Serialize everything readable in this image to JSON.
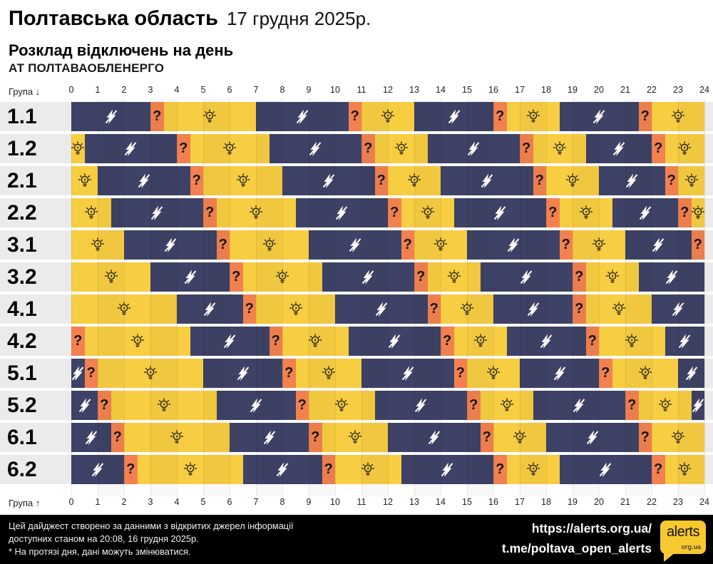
{
  "header": {
    "region": "Полтавська область",
    "date": "17 грудня 2025р.",
    "subtitle": "Розклад відключень на день",
    "company": "АТ ПОЛТАВАОБЛЕНЕРГО"
  },
  "axis": {
    "group_label_down": "Група ↓",
    "group_label_up": "Група ↑",
    "ticks": [
      0,
      1,
      2,
      3,
      4,
      5,
      6,
      7,
      8,
      9,
      10,
      11,
      12,
      13,
      14,
      15,
      16,
      17,
      18,
      19,
      20,
      21,
      22,
      23,
      24
    ]
  },
  "colors": {
    "on": "#f7cd41",
    "off": "#3e4266",
    "maybe": "#f2814f",
    "row_bg": "#ebebeb",
    "footer_bg": "#000000",
    "logo_yellow": "#f7c92f"
  },
  "icons": {
    "on": "bulb-icon",
    "off": "no-power-icon",
    "maybe": "question-mark",
    "maybe_char": "?"
  },
  "chart_data": {
    "type": "gantt",
    "title": "Розклад відключень на день",
    "x_unit": "hours",
    "x_range": [
      0,
      24
    ],
    "states": [
      "on",
      "off",
      "maybe"
    ],
    "groups": [
      {
        "name": "1.1",
        "segments": [
          [
            "off",
            0,
            3
          ],
          [
            "maybe",
            3,
            3.5
          ],
          [
            "on",
            3.5,
            7
          ],
          [
            "off",
            7,
            10.5
          ],
          [
            "maybe",
            10.5,
            11
          ],
          [
            "on",
            11,
            13
          ],
          [
            "off",
            13,
            16
          ],
          [
            "maybe",
            16,
            16.5
          ],
          [
            "on",
            16.5,
            18.5
          ],
          [
            "off",
            18.5,
            21.5
          ],
          [
            "maybe",
            21.5,
            22
          ],
          [
            "on",
            22,
            24
          ]
        ]
      },
      {
        "name": "1.2",
        "segments": [
          [
            "on",
            0,
            0.5
          ],
          [
            "off",
            0.5,
            4
          ],
          [
            "maybe",
            4,
            4.5
          ],
          [
            "on",
            4.5,
            7.5
          ],
          [
            "off",
            7.5,
            11
          ],
          [
            "maybe",
            11,
            11.5
          ],
          [
            "on",
            11.5,
            13.5
          ],
          [
            "off",
            13.5,
            17
          ],
          [
            "maybe",
            17,
            17.5
          ],
          [
            "on",
            17.5,
            19.5
          ],
          [
            "off",
            19.5,
            22
          ],
          [
            "maybe",
            22,
            22.5
          ],
          [
            "on",
            22.5,
            24
          ]
        ]
      },
      {
        "name": "2.1",
        "segments": [
          [
            "on",
            0,
            1
          ],
          [
            "off",
            1,
            4.5
          ],
          [
            "maybe",
            4.5,
            5
          ],
          [
            "on",
            5,
            8
          ],
          [
            "off",
            8,
            11.5
          ],
          [
            "maybe",
            11.5,
            12
          ],
          [
            "on",
            12,
            14
          ],
          [
            "off",
            14,
            17.5
          ],
          [
            "maybe",
            17.5,
            18
          ],
          [
            "on",
            18,
            20
          ],
          [
            "off",
            20,
            22.5
          ],
          [
            "maybe",
            22.5,
            23
          ],
          [
            "on",
            23,
            24
          ]
        ]
      },
      {
        "name": "2.2",
        "segments": [
          [
            "on",
            0,
            1.5
          ],
          [
            "off",
            1.5,
            5
          ],
          [
            "maybe",
            5,
            5.5
          ],
          [
            "on",
            5.5,
            8.5
          ],
          [
            "off",
            8.5,
            12
          ],
          [
            "maybe",
            12,
            12.5
          ],
          [
            "on",
            12.5,
            14.5
          ],
          [
            "off",
            14.5,
            18
          ],
          [
            "maybe",
            18,
            18.5
          ],
          [
            "on",
            18.5,
            20.5
          ],
          [
            "off",
            20.5,
            23
          ],
          [
            "maybe",
            23,
            23.5
          ],
          [
            "on",
            23.5,
            24
          ]
        ]
      },
      {
        "name": "3.1",
        "segments": [
          [
            "on",
            0,
            2
          ],
          [
            "off",
            2,
            5.5
          ],
          [
            "maybe",
            5.5,
            6
          ],
          [
            "on",
            6,
            9
          ],
          [
            "off",
            9,
            12.5
          ],
          [
            "maybe",
            12.5,
            13
          ],
          [
            "on",
            13,
            15
          ],
          [
            "off",
            15,
            18.5
          ],
          [
            "maybe",
            18.5,
            19
          ],
          [
            "on",
            19,
            21
          ],
          [
            "off",
            21,
            23.5
          ],
          [
            "maybe",
            23.5,
            24
          ]
        ]
      },
      {
        "name": "3.2",
        "segments": [
          [
            "on",
            0,
            3
          ],
          [
            "off",
            3,
            6
          ],
          [
            "maybe",
            6,
            6.5
          ],
          [
            "on",
            6.5,
            9.5
          ],
          [
            "off",
            9.5,
            13
          ],
          [
            "maybe",
            13,
            13.5
          ],
          [
            "on",
            13.5,
            15.5
          ],
          [
            "off",
            15.5,
            19
          ],
          [
            "maybe",
            19,
            19.5
          ],
          [
            "on",
            19.5,
            21.5
          ],
          [
            "off",
            21.5,
            24
          ]
        ]
      },
      {
        "name": "4.1",
        "segments": [
          [
            "on",
            0,
            4
          ],
          [
            "off",
            4,
            6.5
          ],
          [
            "maybe",
            6.5,
            7
          ],
          [
            "on",
            7,
            10
          ],
          [
            "off",
            10,
            13.5
          ],
          [
            "maybe",
            13.5,
            14
          ],
          [
            "on",
            14,
            16
          ],
          [
            "off",
            16,
            19
          ],
          [
            "maybe",
            19,
            19.5
          ],
          [
            "on",
            19.5,
            22
          ],
          [
            "off",
            22,
            24
          ]
        ]
      },
      {
        "name": "4.2",
        "segments": [
          [
            "maybe",
            0,
            0.5
          ],
          [
            "on",
            0.5,
            4.5
          ],
          [
            "off",
            4.5,
            7.5
          ],
          [
            "maybe",
            7.5,
            8
          ],
          [
            "on",
            8,
            10.5
          ],
          [
            "off",
            10.5,
            14
          ],
          [
            "maybe",
            14,
            14.5
          ],
          [
            "on",
            14.5,
            16.5
          ],
          [
            "off",
            16.5,
            19.5
          ],
          [
            "maybe",
            19.5,
            20
          ],
          [
            "on",
            20,
            22.5
          ],
          [
            "off",
            22.5,
            24
          ]
        ]
      },
      {
        "name": "5.1",
        "segments": [
          [
            "off",
            0,
            0.5
          ],
          [
            "maybe",
            0.5,
            1
          ],
          [
            "on",
            1,
            5
          ],
          [
            "off",
            5,
            8
          ],
          [
            "maybe",
            8,
            8.5
          ],
          [
            "on",
            8.5,
            11
          ],
          [
            "off",
            11,
            14.5
          ],
          [
            "maybe",
            14.5,
            15
          ],
          [
            "on",
            15,
            17
          ],
          [
            "off",
            17,
            20
          ],
          [
            "maybe",
            20,
            20.5
          ],
          [
            "on",
            20.5,
            23
          ],
          [
            "off",
            23,
            24
          ]
        ]
      },
      {
        "name": "5.2",
        "segments": [
          [
            "off",
            0,
            1
          ],
          [
            "maybe",
            1,
            1.5
          ],
          [
            "on",
            1.5,
            5.5
          ],
          [
            "off",
            5.5,
            8.5
          ],
          [
            "maybe",
            8.5,
            9
          ],
          [
            "on",
            9,
            11.5
          ],
          [
            "off",
            11.5,
            15
          ],
          [
            "maybe",
            15,
            15.5
          ],
          [
            "on",
            15.5,
            17.5
          ],
          [
            "off",
            17.5,
            21
          ],
          [
            "maybe",
            21,
            21.5
          ],
          [
            "on",
            21.5,
            23.5
          ],
          [
            "off",
            23.5,
            24
          ]
        ]
      },
      {
        "name": "6.1",
        "segments": [
          [
            "off",
            0,
            1.5
          ],
          [
            "maybe",
            1.5,
            2
          ],
          [
            "on",
            2,
            6
          ],
          [
            "off",
            6,
            9
          ],
          [
            "maybe",
            9,
            9.5
          ],
          [
            "on",
            9.5,
            12
          ],
          [
            "off",
            12,
            15.5
          ],
          [
            "maybe",
            15.5,
            16
          ],
          [
            "on",
            16,
            18
          ],
          [
            "off",
            18,
            21.5
          ],
          [
            "maybe",
            21.5,
            22
          ],
          [
            "on",
            22,
            24
          ]
        ]
      },
      {
        "name": "6.2",
        "segments": [
          [
            "off",
            0,
            2
          ],
          [
            "maybe",
            2,
            2.5
          ],
          [
            "on",
            2.5,
            6.5
          ],
          [
            "off",
            6.5,
            9.5
          ],
          [
            "maybe",
            9.5,
            10
          ],
          [
            "on",
            10,
            12.5
          ],
          [
            "off",
            12.5,
            16
          ],
          [
            "maybe",
            16,
            16.5
          ],
          [
            "on",
            16.5,
            18.5
          ],
          [
            "off",
            18.5,
            22
          ],
          [
            "maybe",
            22,
            22.5
          ],
          [
            "on",
            22.5,
            24
          ]
        ]
      }
    ]
  },
  "footer": {
    "line1": "Цей дайджест створено за данними з відкритих джерел інформації",
    "line2": "доступних станом на 20:08, 16 грудня 2025р.",
    "line3": "* На протязі дня, дані можуть змінюватися.",
    "url1": "https://alerts.org.ua/",
    "url2": "t.me/poltava_open_alerts",
    "logo_text": "alerts",
    "logo_sub": "org.ua"
  }
}
